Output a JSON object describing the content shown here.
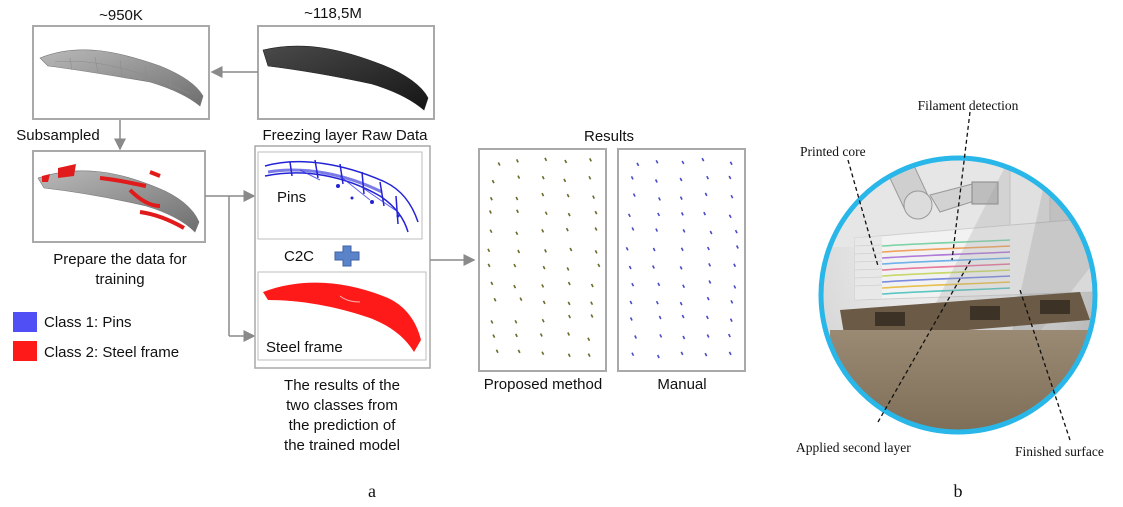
{
  "panel_a": {
    "count_subsampled": "~950K",
    "count_raw": "~118,5M",
    "label_subsampled": "Subsampled",
    "label_raw": "Freezing layer Raw Data",
    "label_prepare_line1": "Prepare the data for",
    "label_prepare_line2": "training",
    "legend": [
      {
        "label": "Class 1: Pins",
        "color": "#4f4ff5"
      },
      {
        "label": "Class 2: Steel frame",
        "color": "#ff1a1a"
      }
    ],
    "label_pins": "Pins",
    "label_c2c": "C2C",
    "label_steel_frame": "Steel frame",
    "caption_lines": [
      "The results of the",
      "two classes from",
      "the prediction of",
      "the trained model"
    ],
    "results_title": "Results",
    "label_proposed": "Proposed method",
    "label_manual": "Manual",
    "sublabel": "a"
  },
  "panel_b": {
    "label_filament": "Filament detection",
    "label_printed_core": "Printed core",
    "label_applied": "Applied second layer",
    "label_finished": "Finished surface",
    "sublabel": "b",
    "ring_color": "#29b6e8"
  }
}
